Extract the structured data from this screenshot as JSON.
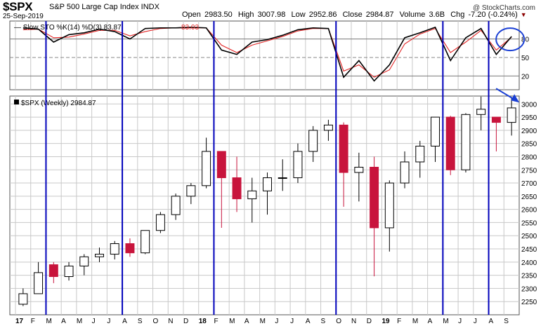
{
  "header": {
    "symbol": "$SPX",
    "name": "S&P 500 Large Cap Index INDX",
    "date": "25-Sep-2019",
    "credit": "@ StockCharts.com",
    "open_label": "Open",
    "open": "2983.50",
    "high_label": "High",
    "high": "3007.98",
    "low_label": "Low",
    "low": "2952.86",
    "close_label": "Close",
    "close": "2984.87",
    "volume_label": "Volume",
    "volume": "3.6B",
    "chg_label": "Chg",
    "chg": "-7.20 (-0.24%)"
  },
  "colors": {
    "up": "#000000",
    "down": "#c8143c",
    "k_line": "#000000",
    "d_line": "#e32626",
    "vline": "#0000bb",
    "annotation": "#1a3fd4",
    "grid": "#c8c8c8"
  },
  "chart_data": [
    {
      "type": "line",
      "title": "Slow STO %K(14) %D(3)",
      "legend": {
        "prefix": "Slow STO %K(14) %D(3)",
        "k_value": "83.87",
        "d_value": "83.03"
      },
      "ylim": [
        0,
        100
      ],
      "y_ticks": [
        20,
        50,
        80
      ],
      "reference_lines": [
        20,
        50,
        80
      ],
      "x": [
        "2017-01",
        "2017-02",
        "2017-03",
        "2017-04",
        "2017-05",
        "2017-06",
        "2017-07",
        "2017-08",
        "2017-09",
        "2017-10",
        "2017-11",
        "2017-12",
        "2018-01",
        "2018-02",
        "2018-03",
        "2018-04",
        "2018-05",
        "2018-06",
        "2018-07",
        "2018-08",
        "2018-09",
        "2018-10",
        "2018-11",
        "2018-12",
        "2019-01",
        "2019-02",
        "2019-03",
        "2019-04",
        "2019-05",
        "2019-06",
        "2019-07",
        "2019-08",
        "2019-09"
      ],
      "series": [
        {
          "name": "%K",
          "values": [
            98,
            96,
            75,
            87,
            90,
            96,
            92,
            80,
            97,
            98,
            98,
            99,
            98,
            62,
            55,
            75,
            79,
            86,
            95,
            98,
            97,
            18,
            45,
            12,
            38,
            82,
            90,
            99,
            45,
            82,
            97,
            55,
            84
          ]
        },
        {
          "name": "%D",
          "values": [
            95,
            96,
            82,
            83,
            88,
            94,
            94,
            85,
            92,
            97,
            98,
            98,
            98,
            70,
            58,
            70,
            77,
            84,
            93,
            97,
            97,
            28,
            38,
            18,
            30,
            72,
            88,
            97,
            58,
            75,
            94,
            62,
            83
          ]
        }
      ]
    },
    {
      "type": "bar",
      "title": "$SPX (Weekly)",
      "legend": {
        "prefix": "$SPX (Weekly)",
        "value": "2984.87"
      },
      "ylim": [
        2200,
        3030
      ],
      "y_ticks": [
        2250,
        2300,
        2350,
        2400,
        2450,
        2500,
        2550,
        2600,
        2650,
        2700,
        2750,
        2800,
        2850,
        2900,
        2950,
        3000
      ],
      "x_tick_labels": [
        "17",
        "F",
        "M",
        "A",
        "M",
        "J",
        "J",
        "A",
        "S",
        "O",
        "N",
        "D",
        "18",
        "F",
        "M",
        "A",
        "M",
        "J",
        "J",
        "A",
        "S",
        "O",
        "N",
        "D",
        "19",
        "F",
        "M",
        "A",
        "M",
        "J",
        "J",
        "A",
        "S"
      ],
      "x": [
        "2017-01",
        "2017-02",
        "2017-03",
        "2017-04",
        "2017-05",
        "2017-06",
        "2017-07",
        "2017-08",
        "2017-09",
        "2017-10",
        "2017-11",
        "2017-12",
        "2018-01",
        "2018-02",
        "2018-03",
        "2018-04",
        "2018-05",
        "2018-06",
        "2018-07",
        "2018-08",
        "2018-09",
        "2018-10",
        "2018-11",
        "2018-12",
        "2019-01",
        "2019-02",
        "2019-03",
        "2019-04",
        "2019-05",
        "2019-06",
        "2019-07",
        "2019-08",
        "2019-09"
      ],
      "series": [
        {
          "name": "Open",
          "values": [
            2240,
            2280,
            2390,
            2345,
            2385,
            2420,
            2430,
            2470,
            2435,
            2520,
            2580,
            2650,
            2690,
            2820,
            2720,
            2640,
            2670,
            2720,
            2720,
            2820,
            2900,
            2920,
            2740,
            2760,
            2530,
            2700,
            2780,
            2840,
            2950,
            2750,
            2960,
            2950,
            2930
          ]
        },
        {
          "name": "High",
          "values": [
            2300,
            2400,
            2400,
            2400,
            2430,
            2455,
            2480,
            2490,
            2520,
            2590,
            2660,
            2700,
            2872,
            2790,
            2800,
            2720,
            2740,
            2790,
            2850,
            2916,
            2940,
            2930,
            2815,
            2800,
            2710,
            2820,
            2860,
            2950,
            2955,
            2965,
            3028,
            2950,
            3022
          ]
        },
        {
          "name": "Low",
          "values": [
            2233,
            2280,
            2320,
            2330,
            2350,
            2400,
            2410,
            2420,
            2430,
            2510,
            2560,
            2620,
            2680,
            2530,
            2590,
            2550,
            2580,
            2670,
            2700,
            2780,
            2860,
            2610,
            2630,
            2346,
            2440,
            2680,
            2720,
            2780,
            2730,
            2740,
            2900,
            2820,
            2880
          ]
        },
        {
          "name": "Close",
          "values": [
            2280,
            2360,
            2345,
            2385,
            2420,
            2430,
            2470,
            2435,
            2520,
            2580,
            2650,
            2690,
            2820,
            2720,
            2640,
            2670,
            2720,
            2720,
            2820,
            2900,
            2920,
            2740,
            2760,
            2530,
            2700,
            2780,
            2840,
            2950,
            2750,
            2960,
            2980,
            2930,
            2985
          ]
        }
      ],
      "events": [
        "2017-03",
        "2017-08",
        "2018-02",
        "2018-10",
        "2019-05",
        "2019-08"
      ]
    }
  ],
  "annotations": [
    {
      "type": "circle",
      "label": "stochastic rollover"
    },
    {
      "type": "arrow",
      "label": "price at 3000"
    }
  ]
}
